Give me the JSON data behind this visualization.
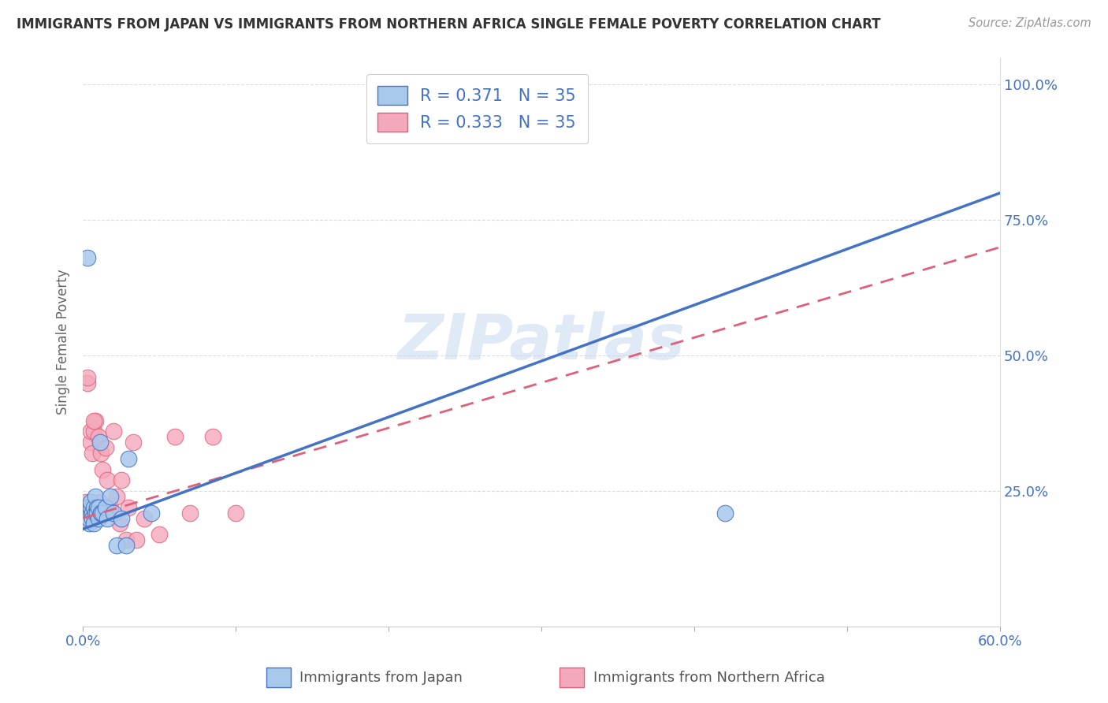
{
  "title": "IMMIGRANTS FROM JAPAN VS IMMIGRANTS FROM NORTHERN AFRICA SINGLE FEMALE POVERTY CORRELATION CHART",
  "source_text": "Source: ZipAtlas.com",
  "ylabel": "Single Female Poverty",
  "R_japan": 0.371,
  "N_japan": 35,
  "R_africa": 0.333,
  "N_africa": 35,
  "legend_label_japan": "Immigrants from Japan",
  "legend_label_africa": "Immigrants from Northern Africa",
  "color_japan": "#a8c8ec",
  "color_africa": "#f4a8bc",
  "color_japan_line": "#4472c4",
  "color_africa_line": "#e0607a",
  "watermark": "ZIPatlas",
  "japan_x": [
    0.001,
    0.002,
    0.002,
    0.003,
    0.003,
    0.004,
    0.004,
    0.005,
    0.005,
    0.005,
    0.006,
    0.006,
    0.007,
    0.007,
    0.008,
    0.008,
    0.009,
    0.009,
    0.01,
    0.01,
    0.011,
    0.012,
    0.012,
    0.013,
    0.015,
    0.016,
    0.018,
    0.02,
    0.022,
    0.025,
    0.028,
    0.03,
    0.045,
    0.42,
    0.003
  ],
  "japan_y": [
    0.22,
    0.21,
    0.2,
    0.22,
    0.21,
    0.19,
    0.2,
    0.21,
    0.22,
    0.23,
    0.21,
    0.2,
    0.22,
    0.19,
    0.21,
    0.24,
    0.22,
    0.21,
    0.2,
    0.22,
    0.34,
    0.21,
    0.21,
    0.21,
    0.22,
    0.2,
    0.24,
    0.21,
    0.15,
    0.2,
    0.15,
    0.31,
    0.21,
    0.21,
    0.68
  ],
  "africa_x": [
    0.001,
    0.002,
    0.003,
    0.004,
    0.005,
    0.005,
    0.006,
    0.007,
    0.008,
    0.008,
    0.009,
    0.01,
    0.011,
    0.012,
    0.013,
    0.015,
    0.016,
    0.018,
    0.02,
    0.022,
    0.024,
    0.025,
    0.028,
    0.03,
    0.033,
    0.035,
    0.04,
    0.05,
    0.06,
    0.07,
    0.085,
    0.1,
    0.003,
    0.004,
    0.007
  ],
  "africa_y": [
    0.22,
    0.23,
    0.45,
    0.22,
    0.34,
    0.36,
    0.32,
    0.36,
    0.21,
    0.38,
    0.22,
    0.35,
    0.23,
    0.32,
    0.29,
    0.33,
    0.27,
    0.22,
    0.36,
    0.24,
    0.19,
    0.27,
    0.16,
    0.22,
    0.34,
    0.16,
    0.2,
    0.17,
    0.35,
    0.21,
    0.35,
    0.21,
    0.46,
    0.2,
    0.38
  ],
  "xmin": 0.0,
  "xmax": 0.6,
  "ymin": 0.0,
  "ymax": 1.05,
  "grid_color": "#dddddd",
  "background_color": "#ffffff",
  "title_color": "#333333",
  "axis_color": "#4472c4",
  "japan_line_x0": 0.0,
  "japan_line_y0": 0.18,
  "japan_line_x1": 0.6,
  "japan_line_y1": 0.8,
  "africa_line_x0": 0.0,
  "africa_line_y0": 0.2,
  "africa_line_x1": 0.6,
  "africa_line_y1": 0.7
}
